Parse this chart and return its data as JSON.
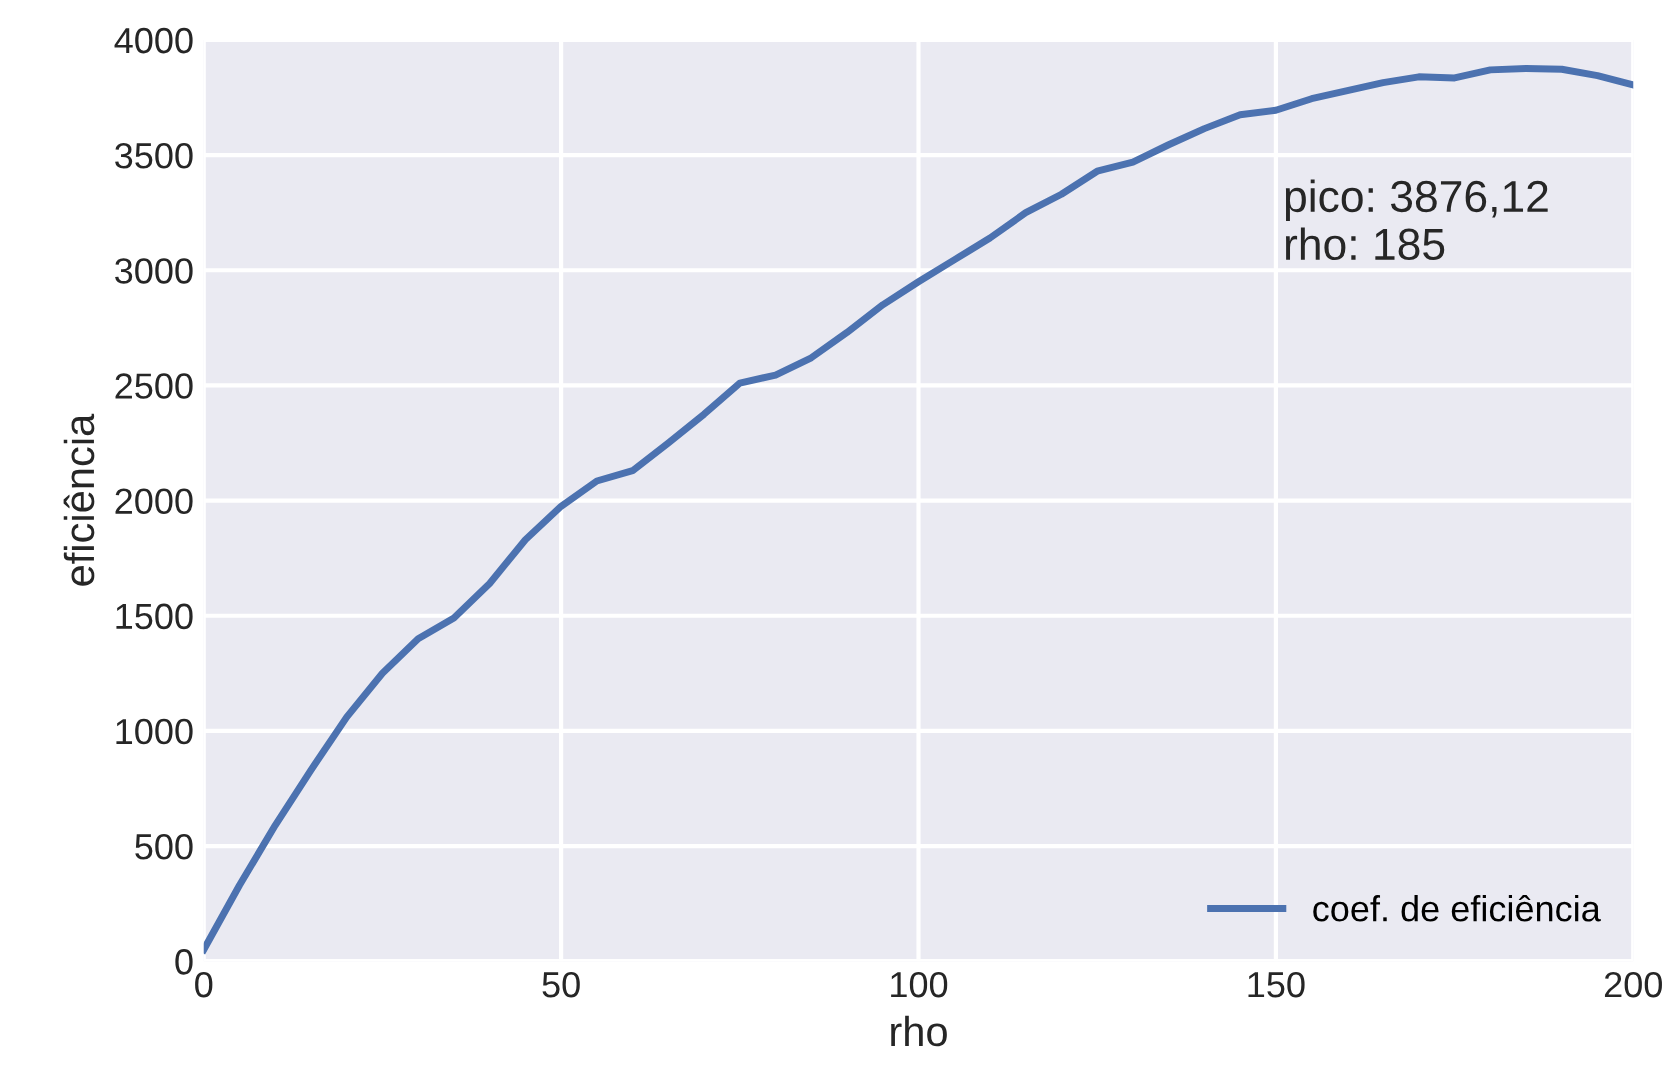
{
  "chart_data": {
    "type": "line",
    "xlabel": "rho",
    "ylabel": "eficiência",
    "x": [
      0,
      5,
      10,
      15,
      20,
      25,
      30,
      35,
      40,
      45,
      50,
      55,
      60,
      65,
      70,
      75,
      80,
      85,
      90,
      95,
      100,
      105,
      110,
      115,
      120,
      125,
      130,
      135,
      140,
      145,
      150,
      155,
      160,
      165,
      170,
      175,
      180,
      185,
      190,
      195,
      200
    ],
    "series": [
      {
        "name": "coef. de eficiência",
        "color": "#4c72b0",
        "values": [
          50,
          330,
          590,
          830,
          1060,
          1250,
          1400,
          1490,
          1640,
          1830,
          1975,
          2085,
          2130,
          2250,
          2375,
          2510,
          2545,
          2620,
          2730,
          2850,
          2950,
          3045,
          3140,
          3250,
          3330,
          3430,
          3470,
          3545,
          3615,
          3675,
          3695,
          3745,
          3780,
          3815,
          3840,
          3835,
          3870,
          3876,
          3873,
          3845,
          3805
        ]
      }
    ],
    "xlim": [
      0,
      200
    ],
    "xticks": [
      0,
      50,
      100,
      150,
      200
    ],
    "ylim": [
      0,
      4000
    ],
    "yticks": [
      0,
      500,
      1000,
      1500,
      2000,
      2500,
      3000,
      3500,
      4000
    ],
    "annotations": [
      "pico: 3876,12\nrho: 185"
    ],
    "grid": true,
    "legend": "lower right",
    "marker": "none",
    "line_style": "solid"
  }
}
